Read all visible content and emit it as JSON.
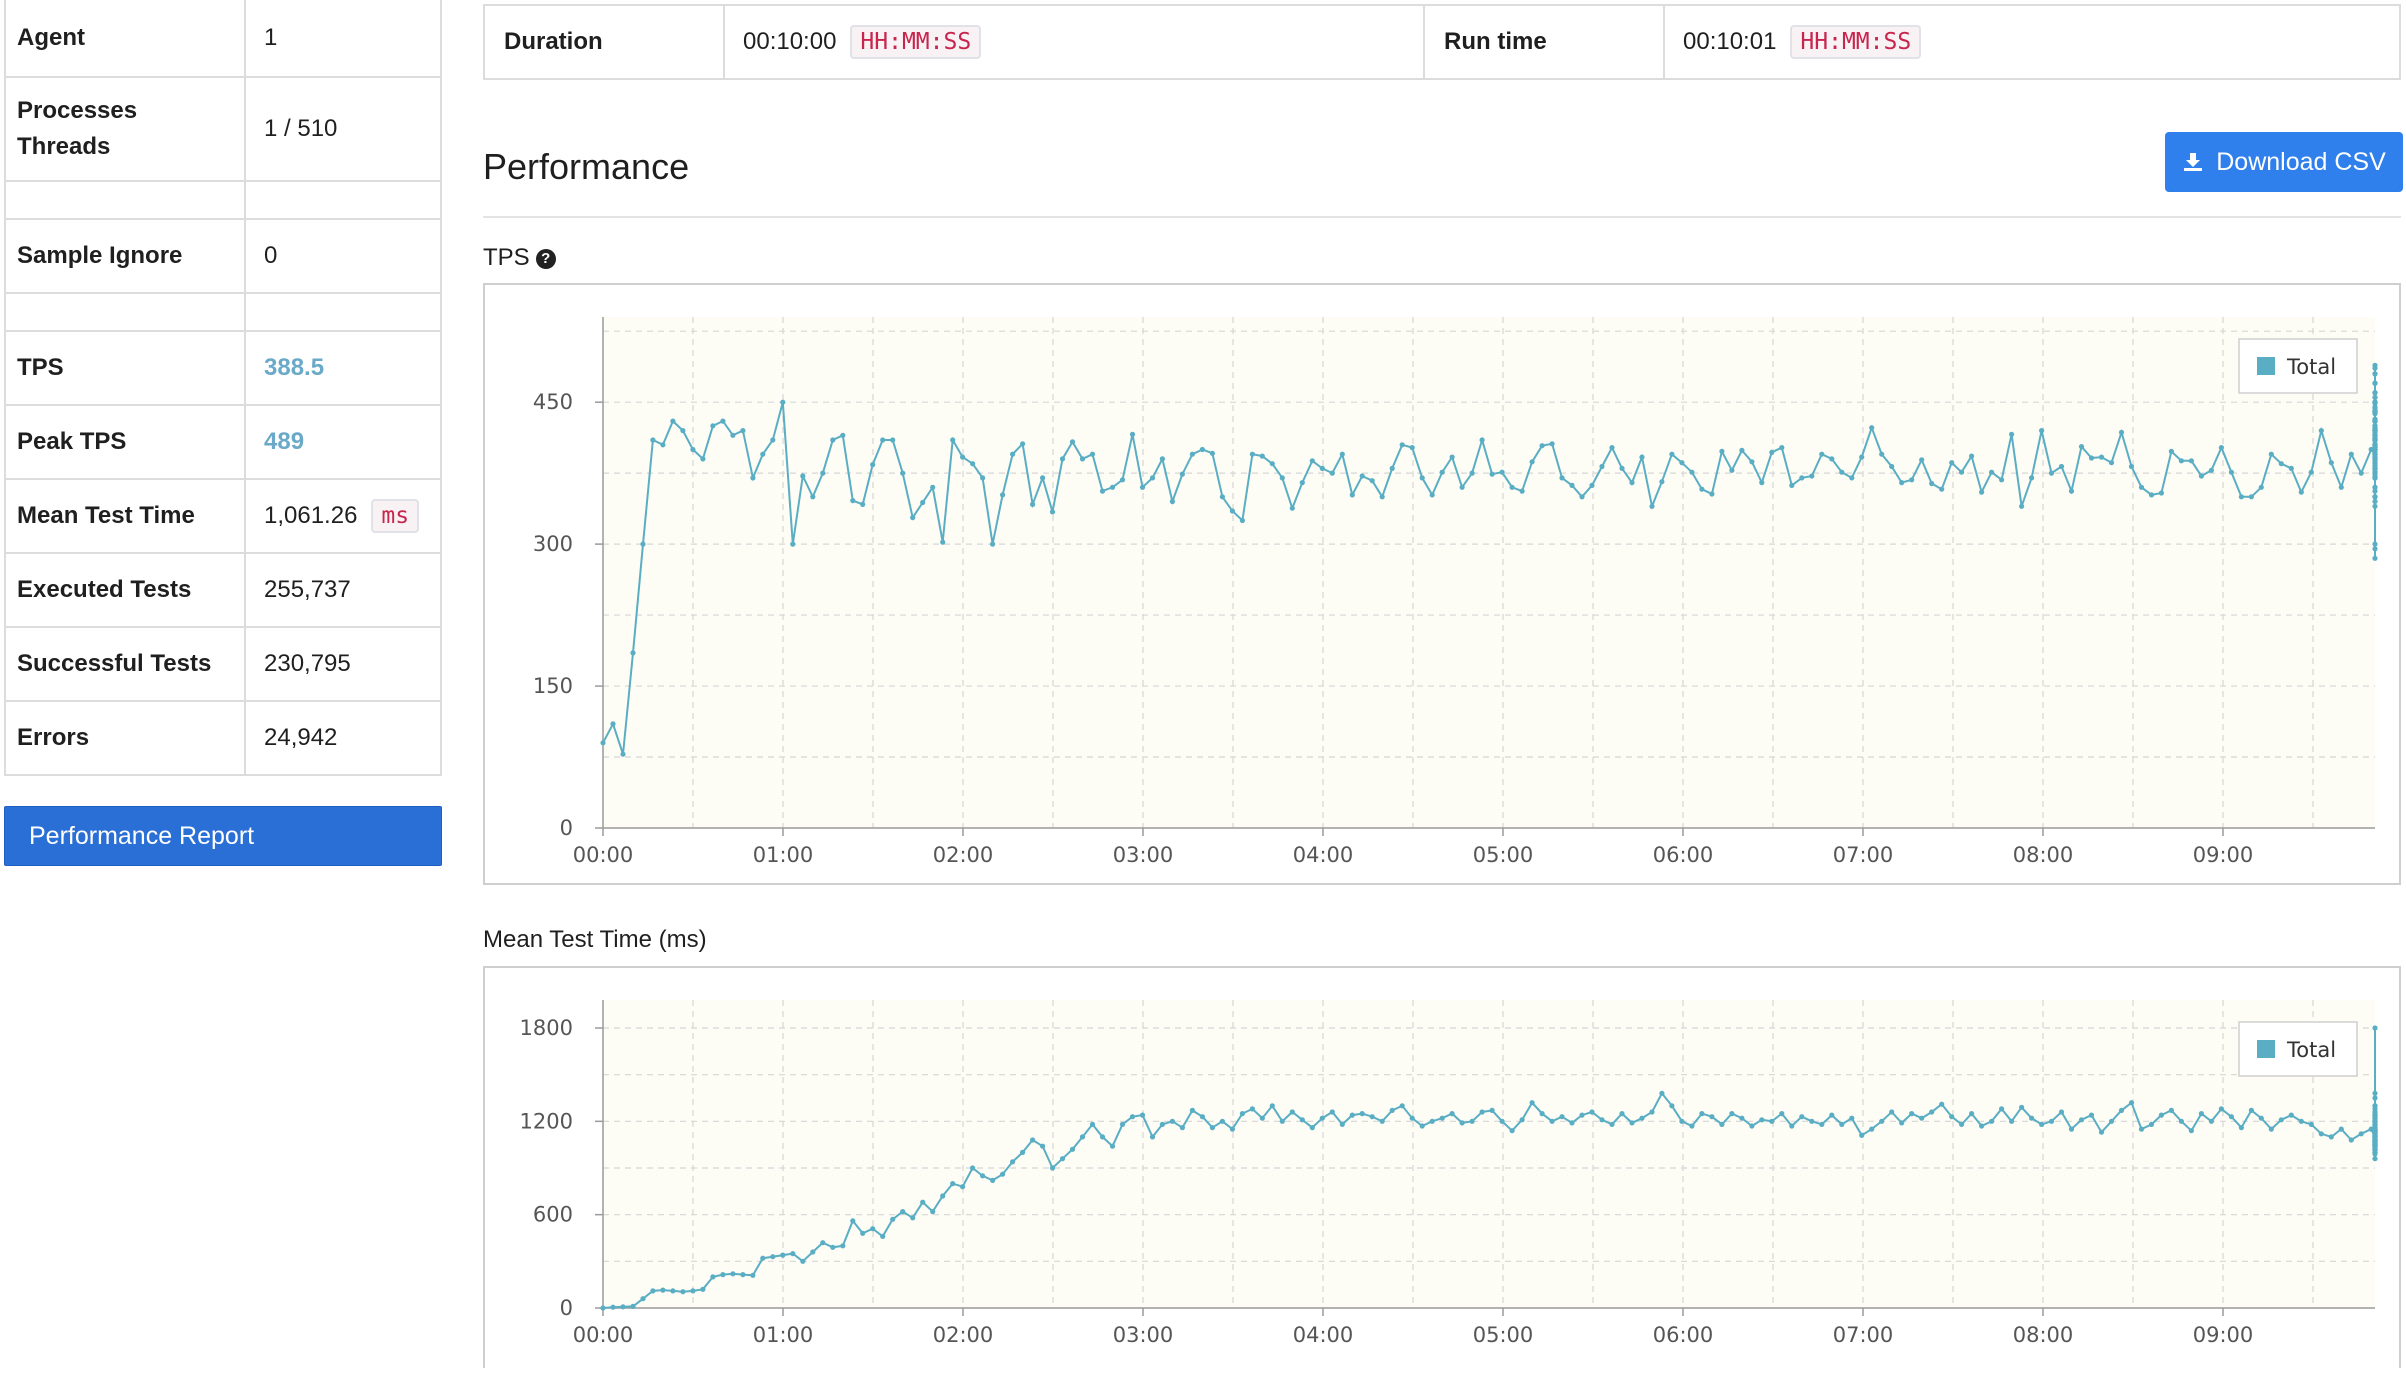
{
  "stats": [
    {
      "label": "Agent",
      "value": "1"
    },
    {
      "label": "Processes\nThreads",
      "value": "1 / 510"
    },
    {
      "label": "",
      "value": ""
    },
    {
      "label": "Sample Ignore",
      "value": "0"
    },
    {
      "label": "",
      "value": ""
    },
    {
      "label": "TPS",
      "value": "388.5",
      "highlight": true
    },
    {
      "label": "Peak TPS",
      "value": "489",
      "highlight": true
    },
    {
      "label": "Mean Test Time",
      "value": "1,061.26",
      "unit": "ms"
    },
    {
      "label": "Executed Tests",
      "value": "255,737"
    },
    {
      "label": "Successful Tests",
      "value": "230,795"
    },
    {
      "label": "Errors",
      "value": "24,942"
    }
  ],
  "sidebar": {
    "report_button": "Performance Report"
  },
  "summary": {
    "duration_label": "Duration",
    "duration_value": "00:10:00",
    "duration_format": "HH:MM:SS",
    "runtime_label": "Run time",
    "runtime_value": "00:10:01",
    "runtime_format": "HH:MM:SS"
  },
  "performance": {
    "title": "Performance",
    "download_label": "Download CSV",
    "download_icon": "download-icon",
    "tps_label": "TPS",
    "tps_help_icon": "question-circle-icon",
    "mtt_label": "Mean Test Time (ms)"
  },
  "colors": {
    "series": "#5aaec4",
    "plot_bg": "#fdfcf5",
    "button": "#2f80ed",
    "report_button": "#2a6fd6"
  },
  "chart_data": [
    {
      "type": "line",
      "title": "TPS",
      "ylim": [
        0,
        540
      ],
      "yticks": [
        0,
        150,
        300,
        450
      ],
      "xticks": [
        "00:00",
        "01:00",
        "02:00",
        "03:00",
        "04:00",
        "05:00",
        "06:00",
        "07:00",
        "08:00",
        "09:00"
      ],
      "grid": true,
      "legend": "top-right",
      "series": [
        {
          "name": "Total",
          "interval_s": 3.33,
          "values": [
            90,
            110,
            78,
            185,
            300,
            410,
            405,
            430,
            420,
            400,
            390,
            425,
            430,
            415,
            420,
            370,
            395,
            410,
            450,
            300,
            372,
            350,
            375,
            410,
            415,
            346,
            342,
            384,
            410,
            410,
            375,
            328,
            344,
            360,
            302,
            410,
            392,
            385,
            370,
            300,
            352,
            395,
            406,
            342,
            370,
            334,
            390,
            408,
            390,
            395,
            356,
            360,
            368,
            416,
            360,
            370,
            390,
            345,
            374,
            395,
            400,
            396,
            350,
            335,
            325,
            395,
            393,
            385,
            370,
            338,
            365,
            388,
            380,
            375,
            395,
            352,
            372,
            367,
            350,
            380,
            405,
            402,
            370,
            352,
            376,
            392,
            360,
            375,
            410,
            374,
            376,
            360,
            356,
            387,
            404,
            406,
            370,
            362,
            350,
            362,
            382,
            402,
            380,
            365,
            392,
            340,
            366,
            395,
            386,
            376,
            358,
            353,
            398,
            378,
            399,
            387,
            365,
            397,
            402,
            362,
            370,
            372,
            395,
            390,
            376,
            370,
            392,
            423,
            395,
            382,
            365,
            368,
            389,
            364,
            358,
            386,
            376,
            393,
            355,
            376,
            368,
            416,
            340,
            370,
            420,
            375,
            382,
            356,
            403,
            391,
            392,
            386,
            418,
            382,
            360,
            352,
            354,
            398,
            388,
            388,
            372,
            378,
            402,
            376,
            350,
            350,
            360,
            395,
            385,
            380,
            355,
            376,
            420,
            386,
            360,
            395,
            375,
            400,
            395,
            370,
            395,
            375,
            405,
            425,
            400,
            432,
            425,
            415,
            393,
            410,
            400,
            420,
            400,
            385,
            380,
            395,
            382,
            400,
            410,
            345,
            360,
            375,
            370,
            390,
            375,
            392,
            440,
            400,
            410,
            420,
            400,
            390,
            424,
            372,
            410,
            375,
            390,
            350,
            400,
            370,
            410,
            380,
            340,
            400,
            405,
            390,
            370,
            449,
            422,
            300,
            295,
            390,
            356,
            395,
            404,
            405,
            370,
            350,
            400,
            416,
            350,
            377,
            410,
            432,
            405,
            380,
            383,
            402,
            422,
            450,
            420,
            410,
            425,
            440,
            415,
            410,
            405,
            410,
            410,
            440,
            406,
            420,
            412,
            412,
            350,
            410,
            398,
            380,
            400,
            404,
            370,
            402,
            412,
            380,
            400,
            386,
            402,
            410,
            390,
            415,
            285,
            350,
            410,
            450,
            418,
            360,
            415,
            403,
            420,
            438,
            410,
            440,
            388,
            410,
            460,
            400,
            420,
            415,
            444,
            420,
            450,
            438,
            402,
            410,
            395,
            440,
            450,
            430,
            412,
            402,
            420,
            415,
            430,
            395,
            422,
            440,
            455,
            410,
            442,
            438,
            430,
            400,
            430,
            410,
            440,
            440,
            410,
            420,
            400,
            395,
            420,
            445,
            455,
            430,
            420,
            400,
            420,
            420,
            450,
            400,
            420,
            420,
            450,
            470,
            480,
            440,
            420,
            410,
            410,
            420,
            410,
            420,
            410,
            430,
            440,
            450,
            480,
            420,
            415,
            440,
            470,
            430,
            400,
            420,
            450,
            489,
            440,
            380,
            430,
            460,
            400,
            380,
            420,
            460,
            450,
            410,
            400,
            470,
            430,
            400,
            420,
            460,
            420,
            360,
            440,
            470,
            430,
            410,
            440,
            480,
            486,
            430
          ]
        }
      ]
    },
    {
      "type": "line",
      "title": "Mean Test Time (ms)",
      "ylim": [
        0,
        1980
      ],
      "yticks": [
        0,
        600,
        1200,
        1800
      ],
      "xticks": [
        "00:00",
        "01:00",
        "02:00",
        "03:00",
        "04:00",
        "05:00",
        "06:00",
        "07:00",
        "08:00",
        "09:00"
      ],
      "grid": true,
      "legend": "top-right",
      "series": [
        {
          "name": "Total",
          "interval_s": 3.33,
          "values": [
            0,
            5,
            8,
            10,
            60,
            110,
            115,
            110,
            105,
            110,
            120,
            200,
            215,
            220,
            215,
            210,
            320,
            330,
            340,
            350,
            300,
            360,
            420,
            390,
            400,
            560,
            480,
            510,
            460,
            570,
            620,
            580,
            680,
            620,
            720,
            800,
            780,
            900,
            850,
            820,
            860,
            940,
            1000,
            1080,
            1040,
            900,
            960,
            1020,
            1100,
            1180,
            1100,
            1040,
            1180,
            1230,
            1240,
            1100,
            1180,
            1200,
            1160,
            1270,
            1230,
            1160,
            1200,
            1150,
            1250,
            1280,
            1220,
            1300,
            1200,
            1260,
            1210,
            1160,
            1220,
            1260,
            1180,
            1240,
            1250,
            1230,
            1200,
            1270,
            1300,
            1220,
            1170,
            1200,
            1220,
            1250,
            1190,
            1200,
            1260,
            1270,
            1200,
            1140,
            1210,
            1320,
            1250,
            1200,
            1230,
            1190,
            1240,
            1260,
            1210,
            1180,
            1250,
            1190,
            1220,
            1260,
            1380,
            1300,
            1200,
            1170,
            1250,
            1230,
            1180,
            1250,
            1220,
            1170,
            1210,
            1200,
            1250,
            1170,
            1230,
            1200,
            1180,
            1240,
            1180,
            1220,
            1110,
            1150,
            1200,
            1260,
            1190,
            1250,
            1220,
            1260,
            1310,
            1230,
            1180,
            1250,
            1170,
            1200,
            1280,
            1200,
            1290,
            1220,
            1180,
            1200,
            1260,
            1150,
            1210,
            1240,
            1130,
            1200,
            1270,
            1320,
            1150,
            1180,
            1240,
            1270,
            1200,
            1140,
            1250,
            1200,
            1280,
            1230,
            1160,
            1270,
            1220,
            1150,
            1210,
            1240,
            1200,
            1180,
            1120,
            1100,
            1150,
            1080,
            1120,
            1150,
            1100,
            1160,
            1180,
            1130,
            1180,
            1220,
            1200,
            1140,
            1150,
            1180,
            1240,
            1170,
            1120,
            1280,
            1300,
            1200,
            1100,
            1150,
            1200,
            1240,
            1160,
            1140,
            1300,
            1250,
            1150,
            1050,
            1100,
            1150,
            1220,
            1180,
            1800,
            1230,
            1200,
            1150,
            1220,
            1130,
            1180,
            1180,
            1140,
            1200,
            1220,
            1060,
            1100,
            1140,
            1100,
            1120,
            1080,
            1100,
            1080,
            1140,
            1260,
            1100,
            1080,
            1150,
            1200,
            1120,
            1100,
            1130,
            1100,
            1150,
            1240,
            1180,
            1100,
            1150,
            1200,
            1130,
            1100,
            1380,
            1300,
            1100,
            1260,
            1200,
            1090,
            1160,
            1120,
            1350,
            1140,
            1100,
            1120,
            1200,
            1110,
            1240,
            1180,
            1100,
            1150,
            1130,
            1100,
            1080,
            1030,
            1050,
            1100,
            1150,
            1080,
            1020,
            1100,
            1110,
            1150,
            1120,
            1050,
            1020,
            1080,
            1100,
            1070,
            1100,
            1110,
            1080,
            1050,
            1100,
            1140,
            1080,
            1100,
            1090,
            1120,
            1080,
            1150,
            1200,
            1060,
            1100,
            1040,
            1020,
            1100,
            1140,
            1060,
            1100,
            1120,
            1080,
            1110,
            1060,
            1030,
            1040,
            1100,
            1080,
            1070,
            1100,
            1110,
            1200,
            1050,
            1070,
            1100,
            1040,
            1100,
            1170,
            1140,
            1080,
            1070,
            1040,
            1000,
            990,
            1040,
            1020,
            1080,
            1070,
            1050,
            1030,
            1000,
            1020,
            1060,
            1080,
            1100,
            1050,
            1150,
            1180,
            1060,
            1010,
            1080,
            1040,
            1000,
            1090,
            1060,
            1020,
            1080,
            1100,
            1140,
            1060,
            1020,
            1060,
            1100,
            1080,
            1040,
            1050,
            1100,
            1130,
            1060,
            1080,
            1100,
            1000,
            1050,
            1120,
            1000,
            1020,
            1100,
            1070,
            1040,
            1020,
            1060,
            1080,
            1100,
            1050,
            1060,
            1080,
            1130,
            1060,
            1070,
            1100,
            1040,
            960,
            1000
          ]
        }
      ]
    }
  ]
}
